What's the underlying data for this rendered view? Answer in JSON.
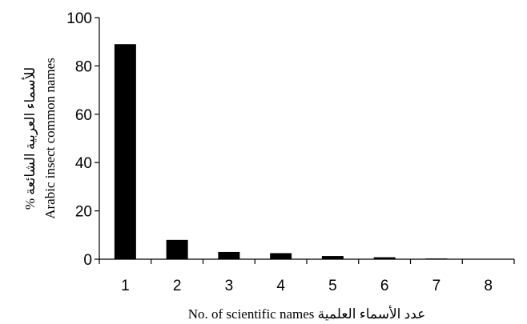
{
  "chart_data": {
    "type": "bar",
    "categories": [
      "1",
      "2",
      "3",
      "4",
      "5",
      "6",
      "7",
      "8"
    ],
    "values": [
      89,
      8,
      3,
      2.5,
      1.3,
      0.8,
      0.3,
      0
    ],
    "ylim": [
      0,
      100
    ],
    "yticks": [
      "0",
      "20",
      "40",
      "60",
      "80",
      "100"
    ],
    "xlabel": "No. of scientific names  عدد الأسماء العلمية",
    "ylabel_line1": "% للأسماء العربية الشائعة",
    "ylabel_line2": "Arabic insect common names",
    "grid": false,
    "legend": "none",
    "bar_color": "#000000"
  }
}
